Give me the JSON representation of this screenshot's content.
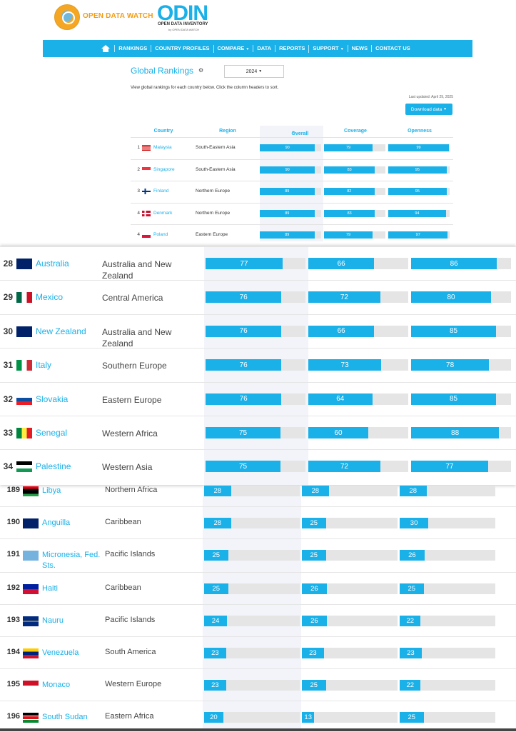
{
  "brand": {
    "odw_name": "OPEN DATA WATCH",
    "odin_letters": "ODIN",
    "odin_subtitle": "OPEN DATA INVENTORY",
    "odin_by": "by OPEN DATA WATCH"
  },
  "nav": {
    "home_icon": "home-icon",
    "items": [
      "RANKINGS",
      "COUNTRY PROFILES",
      "COMPARE",
      "DATA",
      "REPORTS",
      "SUPPORT",
      "NEWS",
      "CONTACT US"
    ]
  },
  "page": {
    "title": "Global Rankings",
    "year": "2024",
    "intro": "View global rankings for each country below. Click the column headers to sort.",
    "last_updated": "Last updated: April 29, 2025",
    "download_label": "Download data"
  },
  "table_headers": {
    "country": "Country",
    "region": "Region",
    "overall": "Overall",
    "coverage": "Coverage",
    "openness": "Openness"
  },
  "colors": {
    "accent": "#1ab0e8",
    "bar_bg": "#e5e5e5",
    "logo_orange": "#f39c12"
  },
  "top_rows": [
    {
      "rank": "1",
      "country": "Malaysia",
      "region": "South-Eastern Asia",
      "overall": 90,
      "coverage": 79,
      "openness": 99
    },
    {
      "rank": "2",
      "country": "Singapore",
      "region": "South-Eastern Asia",
      "overall": 90,
      "coverage": 83,
      "openness": 95
    },
    {
      "rank": "3",
      "country": "Finland",
      "region": "Northern Europe",
      "overall": 89,
      "coverage": 82,
      "openness": 95
    },
    {
      "rank": "4",
      "country": "Denmark",
      "region": "Northern Europe",
      "overall": 89,
      "coverage": 83,
      "openness": 94
    },
    {
      "rank": "4",
      "country": "Poland",
      "region": "Eastern Europe",
      "overall": 89,
      "coverage": 79,
      "openness": 97
    }
  ],
  "mid_rows": [
    {
      "rank": "28",
      "country": "Australia",
      "region": "Australia and New Zealand",
      "overall": 77,
      "coverage": 66,
      "openness": 86
    },
    {
      "rank": "29",
      "country": "Mexico",
      "region": "Central America",
      "overall": 76,
      "coverage": 72,
      "openness": 80
    },
    {
      "rank": "30",
      "country": "New Zealand",
      "region": "Australia and New Zealand",
      "overall": 76,
      "coverage": 66,
      "openness": 85
    },
    {
      "rank": "31",
      "country": "Italy",
      "region": "Southern Europe",
      "overall": 76,
      "coverage": 73,
      "openness": 78
    },
    {
      "rank": "32",
      "country": "Slovakia",
      "region": "Eastern Europe",
      "overall": 76,
      "coverage": 64,
      "openness": 85
    },
    {
      "rank": "33",
      "country": "Senegal",
      "region": "Western Africa",
      "overall": 75,
      "coverage": 60,
      "openness": 88
    },
    {
      "rank": "34",
      "country": "Palestine",
      "region": "Western Asia",
      "overall": 75,
      "coverage": 72,
      "openness": 77
    }
  ],
  "bottom_rows": [
    {
      "rank": "189",
      "country": "Libya",
      "region": "Northern Africa",
      "overall": 28,
      "coverage": 28,
      "openness": 28
    },
    {
      "rank": "190",
      "country": "Anguilla",
      "region": "Caribbean",
      "overall": 28,
      "coverage": 25,
      "openness": 30
    },
    {
      "rank": "191",
      "country": "Micronesia, Fed. Sts.",
      "region": "Pacific Islands",
      "overall": 25,
      "coverage": 25,
      "openness": 26
    },
    {
      "rank": "192",
      "country": "Haiti",
      "region": "Caribbean",
      "overall": 25,
      "coverage": 26,
      "openness": 25
    },
    {
      "rank": "193",
      "country": "Nauru",
      "region": "Pacific Islands",
      "overall": 24,
      "coverage": 26,
      "openness": 22
    },
    {
      "rank": "194",
      "country": "Venezuela",
      "region": "South America",
      "overall": 23,
      "coverage": 23,
      "openness": 23
    },
    {
      "rank": "195",
      "country": "Monaco",
      "region": "Western Europe",
      "overall": 23,
      "coverage": 25,
      "openness": 22
    },
    {
      "rank": "196",
      "country": "South Sudan",
      "region": "Eastern Africa",
      "overall": 20,
      "coverage": 13,
      "openness": 25
    }
  ]
}
